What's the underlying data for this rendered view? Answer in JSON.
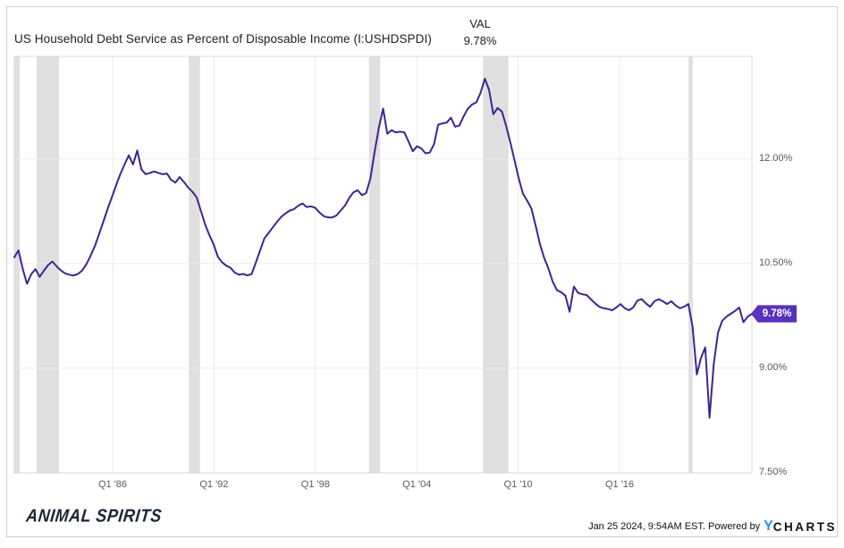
{
  "header": {
    "title": "US Household Debt Service as Percent of Disposable Income (I:USHDSPDI)",
    "val_label": "VAL",
    "val_value": "9.78%"
  },
  "chart_data": {
    "type": "line",
    "title": "US Household Debt Service as Percent of Disposable Income (I:USHDSPDI)",
    "unit": "percent of disposable income",
    "frequency": "quarterly",
    "start_year": 1980,
    "start_quarter": "Q1",
    "end_period": "Q3 2023",
    "last_value": 9.78,
    "last_value_label": "9.78%",
    "x_tick_labels": [
      "Q1 '86",
      "Q1 '92",
      "Q1 '98",
      "Q1 '04",
      "Q1 '10",
      "Q1 '16"
    ],
    "x_tick_years": [
      1986,
      1992,
      1998,
      2004,
      2010,
      2016
    ],
    "y_tick_labels": [
      "12.00%",
      "10.50%",
      "9.00%",
      "7.50%"
    ],
    "y_tick_values": [
      12.0,
      10.5,
      9.0,
      7.5
    ],
    "y_axis_range": [
      7.5,
      13.47
    ],
    "grid": true,
    "legend": false,
    "line_color": "#40248f",
    "badge_color": "#5732bd",
    "recession_band_color": "#e0e0e0",
    "recession_bands_years": [
      [
        1980.0,
        1980.5
      ],
      [
        1981.5,
        1982.83
      ],
      [
        1990.5,
        1991.17
      ],
      [
        2001.17,
        2001.83
      ],
      [
        2007.92,
        2009.42
      ],
      [
        2020.08,
        2020.33
      ]
    ],
    "values": [
      10.59,
      10.69,
      10.42,
      10.21,
      10.35,
      10.42,
      10.31,
      10.4,
      10.48,
      10.53,
      10.46,
      10.4,
      10.36,
      10.34,
      10.33,
      10.35,
      10.4,
      10.49,
      10.61,
      10.75,
      10.92,
      11.1,
      11.28,
      11.45,
      11.62,
      11.78,
      11.92,
      12.05,
      11.92,
      12.12,
      11.85,
      11.78,
      11.8,
      11.82,
      11.8,
      11.78,
      11.79,
      11.7,
      11.66,
      11.74,
      11.67,
      11.59,
      11.53,
      11.45,
      11.26,
      11.06,
      10.91,
      10.78,
      10.6,
      10.52,
      10.47,
      10.44,
      10.37,
      10.34,
      10.35,
      10.33,
      10.35,
      10.52,
      10.69,
      10.86,
      10.94,
      11.02,
      11.1,
      11.17,
      11.22,
      11.26,
      11.28,
      11.33,
      11.36,
      11.31,
      11.32,
      11.3,
      11.23,
      11.18,
      11.16,
      11.16,
      11.19,
      11.26,
      11.33,
      11.44,
      11.52,
      11.55,
      11.48,
      11.51,
      11.72,
      12.1,
      12.45,
      12.72,
      12.36,
      12.41,
      12.38,
      12.39,
      12.38,
      12.25,
      12.11,
      12.18,
      12.15,
      12.08,
      12.09,
      12.21,
      12.49,
      12.51,
      12.52,
      12.59,
      12.46,
      12.48,
      12.61,
      12.72,
      12.78,
      12.81,
      12.95,
      13.15,
      12.99,
      12.64,
      12.73,
      12.68,
      12.48,
      12.24,
      11.98,
      11.72,
      11.5,
      11.4,
      11.29,
      11.04,
      10.78,
      10.58,
      10.43,
      10.24,
      10.12,
      10.09,
      10.04,
      9.81,
      10.17,
      10.08,
      10.06,
      10.05,
      9.99,
      9.93,
      9.88,
      9.86,
      9.85,
      9.83,
      9.87,
      9.92,
      9.86,
      9.83,
      9.87,
      9.97,
      9.99,
      9.93,
      9.88,
      9.96,
      9.99,
      9.96,
      9.92,
      9.96,
      9.9,
      9.86,
      9.88,
      9.92,
      9.6,
      8.91,
      9.15,
      9.3,
      8.29,
      9.06,
      9.51,
      9.68,
      9.74,
      9.78,
      9.82,
      9.87,
      9.66,
      9.74,
      9.78
    ]
  },
  "footer": {
    "brand": "ANIMAL SPIRITS",
    "attribution": "Jan 25 2024, 9:54AM EST. Powered by",
    "logo_y": "Y",
    "logo_charts": "CHARTS",
    "logo_y_color": "#2196f3"
  },
  "colors": {
    "grid": "#ebebeb",
    "plot_border": "#d8d8d8",
    "axis_text": "#5a5a5a",
    "title_text": "#222222"
  }
}
